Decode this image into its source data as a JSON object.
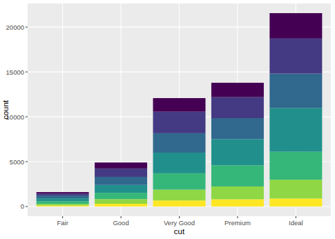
{
  "chart_data": {
    "type": "bar",
    "stacked": true,
    "grid": true,
    "x_label": "cut",
    "y_label": "count",
    "categories": [
      "Fair",
      "Good",
      "Very Good",
      "Premium",
      "Ideal"
    ],
    "series": [
      {
        "color": "#440154",
        "values": [
          163,
          662,
          1513,
          1603,
          2834
        ]
      },
      {
        "color": "#443A83",
        "values": [
          224,
          933,
          2400,
          2337,
          3903
        ]
      },
      {
        "color": "#31688E",
        "values": [
          312,
          909,
          2164,
          2331,
          3826
        ]
      },
      {
        "color": "#21908C",
        "values": [
          314,
          871,
          2299,
          2924,
          4884
        ]
      },
      {
        "color": "#35B779",
        "values": [
          303,
          702,
          1824,
          2360,
          3115
        ]
      },
      {
        "color": "#8FD744",
        "values": [
          175,
          522,
          1204,
          1428,
          2093
        ]
      },
      {
        "color": "#FDE725",
        "values": [
          119,
          307,
          678,
          808,
          896
        ]
      }
    ],
    "ylim": [
      -1078,
      22629
    ],
    "yticks": [
      0,
      5000,
      10000,
      15000,
      20000
    ]
  }
}
